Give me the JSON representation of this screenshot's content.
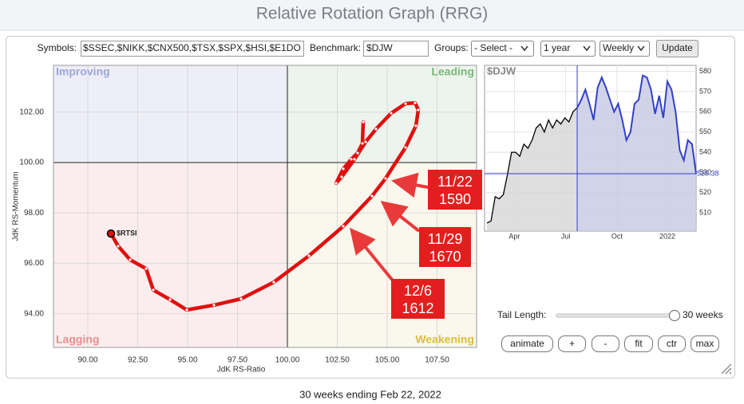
{
  "header": {
    "title": "Relative Rotation Graph (RRG)"
  },
  "toolbar": {
    "symbols_label": "Symbols:",
    "symbols_value": "$SSEC,$NIKK,$CNX500,$TSX,$SPX,$HSI,$E1DO",
    "benchmark_label": "Benchmark:",
    "benchmark_value": "$DJW",
    "groups_label": "Groups:",
    "groups_value": "- Select -",
    "period_value": "1 year",
    "frequency_value": "Weekly",
    "update_button": "Update"
  },
  "rrg": {
    "quadrants": {
      "improving": "Improving",
      "leading": "Leading",
      "lagging": "Lagging",
      "weakening": "Weakening"
    },
    "x_title": "JdK RS-Ratio",
    "y_title": "JdK RS-Momentum",
    "xlim": [
      88.28,
      109.48
    ],
    "ylim": [
      92.66,
      103.86
    ],
    "center": 100,
    "xticks": [
      {
        "value": 90,
        "label": "90.00"
      },
      {
        "value": 92.5,
        "label": "92.50"
      },
      {
        "value": 95,
        "label": "95.00"
      },
      {
        "value": 97.5,
        "label": "97.50"
      },
      {
        "value": 100,
        "label": "100.00"
      },
      {
        "value": 102.5,
        "label": "102.50"
      },
      {
        "value": 105,
        "label": "105.00"
      },
      {
        "value": 107.5,
        "label": "107.50"
      }
    ],
    "yticks": [
      {
        "value": 94,
        "label": "94.00"
      },
      {
        "value": 96,
        "label": "96.00"
      },
      {
        "value": 98,
        "label": "98.00"
      },
      {
        "value": 100,
        "label": "100.00"
      },
      {
        "value": 102,
        "label": "102.00"
      }
    ],
    "tail": {
      "name": "$RTSI",
      "color": "#e01010",
      "x": [
        103.8,
        103.76,
        103.52,
        103.2,
        102.8,
        102.44,
        102.72,
        103.36,
        103.92,
        104.44,
        105.2,
        105.92,
        106.4,
        106.56,
        106.44,
        105.92,
        104.92,
        104.24,
        102.8,
        101.08,
        99.32,
        97.68,
        96.32,
        94.96,
        94.12,
        93.28,
        92.92,
        92.12,
        91.52,
        91.16
      ],
      "y": [
        101.61,
        100.76,
        100.38,
        100.13,
        99.75,
        99.18,
        99.43,
        100.13,
        100.82,
        101.33,
        101.96,
        102.34,
        102.37,
        102.09,
        101.46,
        100.6,
        99.37,
        98.67,
        97.47,
        96.3,
        95.25,
        94.59,
        94.34,
        94.15,
        94.56,
        94.94,
        95.79,
        96.14,
        96.68,
        97.18
      ]
    },
    "annotations": [
      {
        "date": "11/22",
        "value": 1590
      },
      {
        "date": "11/29",
        "value": 1670
      },
      {
        "date": "12/6",
        "value": 1612
      }
    ]
  },
  "benchmark_chart": {
    "title": "$DJW",
    "ylim": [
      501,
      583
    ],
    "yticks": [
      510,
      520,
      530,
      540,
      550,
      560,
      570,
      580
    ],
    "x_labels": [
      {
        "label": "Apr",
        "week": 6.7
      },
      {
        "label": "Jul",
        "week": 19.2
      },
      {
        "label": "Oct",
        "week": 31.7
      },
      {
        "label": "2022",
        "week": 44
      }
    ],
    "values": [
      505,
      506,
      518,
      517,
      519,
      529,
      540,
      540,
      538,
      544,
      542,
      546,
      552,
      554,
      550,
      556,
      552,
      556,
      554,
      557,
      555,
      560,
      562,
      566,
      571,
      564,
      556,
      572,
      577,
      572,
      566,
      560,
      564,
      556,
      546,
      550,
      564,
      566,
      578,
      577,
      571,
      559,
      568,
      557,
      575,
      571,
      560,
      541,
      536,
      546,
      544,
      529.38
    ]
  },
  "controls": {
    "tail_label": "Tail Length:",
    "tail_length": 30,
    "tail_text": "30 weeks",
    "buttons": [
      "animate",
      "+",
      "-",
      "fit",
      "ctr",
      "max"
    ]
  },
  "footer": {
    "caption": "30 weeks ending Feb 22, 2022"
  }
}
